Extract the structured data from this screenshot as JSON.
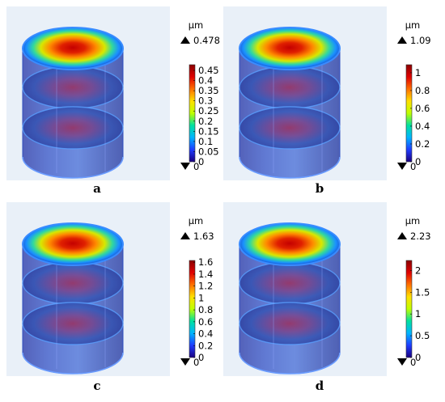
{
  "panels": [
    {
      "letter": "a",
      "unit": "µm",
      "max_label": "0.478",
      "min_label": "0",
      "max_value": 0.478,
      "ticks": [
        "0",
        "0.05",
        "0.1",
        "0.15",
        "0.2",
        "0.25",
        "0.3",
        "0.35",
        "0.4",
        "0.45"
      ],
      "tick_values": [
        0,
        0.05,
        0.1,
        0.15,
        0.2,
        0.25,
        0.3,
        0.35,
        0.4,
        0.45
      ]
    },
    {
      "letter": "b",
      "unit": "µm",
      "max_label": "1.09",
      "min_label": "0",
      "max_value": 1.09,
      "ticks": [
        "0",
        "0.2",
        "0.4",
        "0.6",
        "0.8",
        "1"
      ],
      "tick_values": [
        0,
        0.2,
        0.4,
        0.6,
        0.8,
        1
      ]
    },
    {
      "letter": "c",
      "unit": "µm",
      "max_label": "1.63",
      "min_label": "0",
      "max_value": 1.63,
      "ticks": [
        "0",
        "0.2",
        "0.4",
        "0.6",
        "0.8",
        "1",
        "1.2",
        "1.4",
        "1.6"
      ],
      "tick_values": [
        0,
        0.2,
        0.4,
        0.6,
        0.8,
        1,
        1.2,
        1.4,
        1.6
      ]
    },
    {
      "letter": "d",
      "unit": "µm",
      "max_label": "2.23",
      "min_label": "0",
      "max_value": 2.23,
      "ticks": [
        "0",
        "0.5",
        "1",
        "1.5",
        "2"
      ],
      "tick_values": [
        0,
        0.5,
        1,
        1.5,
        2
      ]
    }
  ],
  "colors": {
    "panel_bg": "#e9f0f8",
    "colormap": [
      "#1a0080",
      "#1f3cff",
      "#00b4ff",
      "#00e0a0",
      "#bfff00",
      "#ffe000",
      "#ff7000",
      "#e00000",
      "#8a0000"
    ]
  }
}
